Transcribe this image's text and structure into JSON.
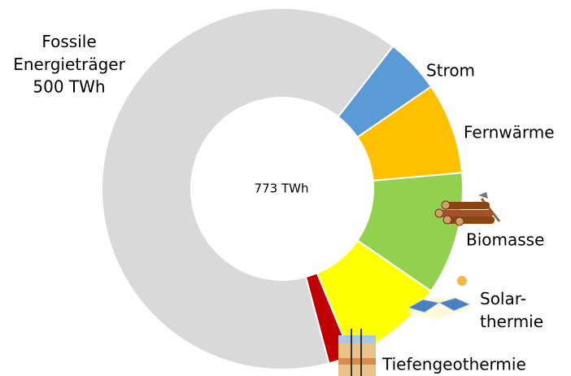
{
  "chart_data": {
    "type": "donut",
    "center_label": "773 TWh",
    "categories": [
      "Fossile Energieträger",
      "Strom",
      "Fernwärme",
      "Biomasse",
      "Solar-thermie",
      "Tiefengeothermie"
    ],
    "values": [
      500,
      38,
      63,
      85,
      71,
      16
    ],
    "value_labels": [
      "500 TWh",
      null,
      null,
      null,
      null,
      null
    ],
    "colors": [
      "#d9d9d9",
      "#5b9bd5",
      "#ffc000",
      "#92d050",
      "#ffff00",
      "#c00000"
    ]
  }
}
